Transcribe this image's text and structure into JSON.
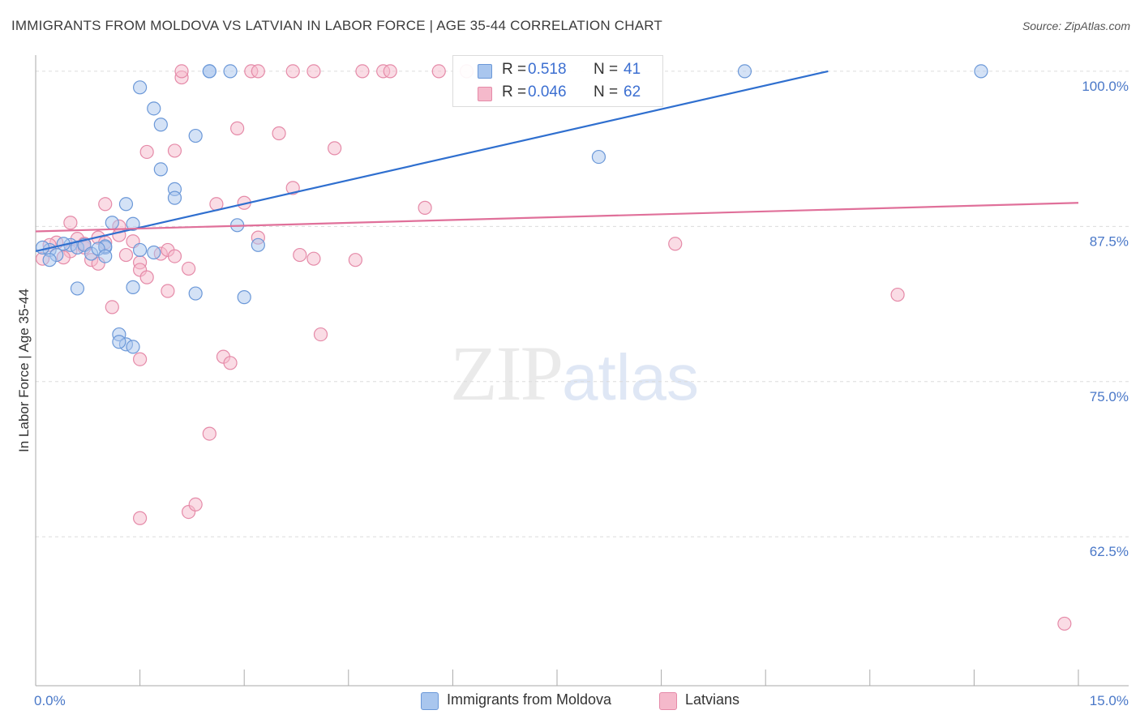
{
  "title": "IMMIGRANTS FROM MOLDOVA VS LATVIAN IN LABOR FORCE | AGE 35-44 CORRELATION CHART",
  "source": "Source: ZipAtlas.com",
  "watermark": {
    "zip": "ZIP",
    "atlas": "atlas"
  },
  "colors": {
    "blue_fill": "#a9c6ee",
    "blue_stroke": "#6b98d8",
    "blue_line": "#2f6fcf",
    "pink_fill": "#f5b9cb",
    "pink_stroke": "#e58aa8",
    "pink_line": "#e0709a",
    "tick_text": "#4a78c8",
    "grid": "#dcdcdc"
  },
  "legend": {
    "rows": [
      {
        "r_label": "R =",
        "r_value": "0.518",
        "n_label": "N =",
        "n_value": "41"
      },
      {
        "r_label": "R =",
        "r_value": "0.046",
        "n_label": "N =",
        "n_value": "62"
      }
    ]
  },
  "bottom_legend": [
    {
      "label": "Immigrants from Moldova"
    },
    {
      "label": "Latvians"
    }
  ],
  "chart_data": {
    "type": "scatter",
    "title": "IMMIGRANTS FROM MOLDOVA VS LATVIAN IN LABOR FORCE | AGE 35-44 CORRELATION CHART",
    "xlabel": "",
    "ylabel": "In Labor Force | Age 35-44",
    "xlim": [
      0,
      15
    ],
    "ylim": [
      50.5,
      101.3
    ],
    "x_tick_labels": [
      {
        "value": 0,
        "label": "0.0%"
      },
      {
        "value": 15,
        "label": "15.0%"
      }
    ],
    "y_tick_labels": [
      {
        "value": 100,
        "label": "100.0%"
      },
      {
        "value": 87.5,
        "label": "87.5%"
      },
      {
        "value": 75,
        "label": "75.0%"
      },
      {
        "value": 62.5,
        "label": "62.5%"
      }
    ],
    "gridlines_y": [
      100,
      87.5,
      75,
      62.5
    ],
    "series": [
      {
        "name": "Immigrants from Moldova",
        "color": "blue",
        "points": [
          [
            0.2,
            85.6
          ],
          [
            0.3,
            85.2
          ],
          [
            0.5,
            86.0
          ],
          [
            0.6,
            85.8
          ],
          [
            0.7,
            86.0
          ],
          [
            0.8,
            85.3
          ],
          [
            1.0,
            85.8
          ],
          [
            1.0,
            85.9
          ],
          [
            1.1,
            87.8
          ],
          [
            1.4,
            87.7
          ],
          [
            1.3,
            89.3
          ],
          [
            1.5,
            85.6
          ],
          [
            1.7,
            85.4
          ],
          [
            1.5,
            98.7
          ],
          [
            1.7,
            97.0
          ],
          [
            1.8,
            95.7
          ],
          [
            1.8,
            92.1
          ],
          [
            2.0,
            90.5
          ],
          [
            2.0,
            89.8
          ],
          [
            2.3,
            94.8
          ],
          [
            2.5,
            100.0
          ],
          [
            2.8,
            100.0
          ],
          [
            2.5,
            100.0
          ],
          [
            2.9,
            87.6
          ],
          [
            3.2,
            86.0
          ],
          [
            3.0,
            81.8
          ],
          [
            2.3,
            82.1
          ],
          [
            1.4,
            82.6
          ],
          [
            0.6,
            82.5
          ],
          [
            1.2,
            78.8
          ],
          [
            1.3,
            78.0
          ],
          [
            1.2,
            78.2
          ],
          [
            1.4,
            77.8
          ],
          [
            8.1,
            93.1
          ],
          [
            10.2,
            100.0
          ],
          [
            13.6,
            100.0
          ],
          [
            0.1,
            85.8
          ],
          [
            0.4,
            86.1
          ],
          [
            0.9,
            85.7
          ],
          [
            1.0,
            85.1
          ],
          [
            0.2,
            84.8
          ]
        ]
      },
      {
        "name": "Latvians",
        "color": "pink",
        "points": [
          [
            0.1,
            84.9
          ],
          [
            0.3,
            86.2
          ],
          [
            0.5,
            87.8
          ],
          [
            0.6,
            86.5
          ],
          [
            0.7,
            85.8
          ],
          [
            0.9,
            86.6
          ],
          [
            0.8,
            84.8
          ],
          [
            1.0,
            86.2
          ],
          [
            1.0,
            89.3
          ],
          [
            1.2,
            87.5
          ],
          [
            1.3,
            85.2
          ],
          [
            1.5,
            84.6
          ],
          [
            1.5,
            84.0
          ],
          [
            1.6,
            93.5
          ],
          [
            1.6,
            83.4
          ],
          [
            1.8,
            85.3
          ],
          [
            1.9,
            85.6
          ],
          [
            1.9,
            82.3
          ],
          [
            2.0,
            93.6
          ],
          [
            2.1,
            99.5
          ],
          [
            2.1,
            100.0
          ],
          [
            2.2,
            84.1
          ],
          [
            2.6,
            89.3
          ],
          [
            2.7,
            77.0
          ],
          [
            2.8,
            76.5
          ],
          [
            2.9,
            95.4
          ],
          [
            3.0,
            89.4
          ],
          [
            3.1,
            100.0
          ],
          [
            3.2,
            100.0
          ],
          [
            3.2,
            86.6
          ],
          [
            3.5,
            95.0
          ],
          [
            3.7,
            90.6
          ],
          [
            3.7,
            100.0
          ],
          [
            4.0,
            100.0
          ],
          [
            4.0,
            84.9
          ],
          [
            4.1,
            78.8
          ],
          [
            4.3,
            93.8
          ],
          [
            4.6,
            84.8
          ],
          [
            4.7,
            100.0
          ],
          [
            5.0,
            100.0
          ],
          [
            5.1,
            100.0
          ],
          [
            5.6,
            89.0
          ],
          [
            5.8,
            100.0
          ],
          [
            6.2,
            100.0
          ],
          [
            9.2,
            86.1
          ],
          [
            12.4,
            82.0
          ],
          [
            14.8,
            55.5
          ],
          [
            1.5,
            76.8
          ],
          [
            2.5,
            70.8
          ],
          [
            2.2,
            64.5
          ],
          [
            2.3,
            65.1
          ],
          [
            1.5,
            64.0
          ],
          [
            1.1,
            81.0
          ],
          [
            0.5,
            85.5
          ],
          [
            0.2,
            86.0
          ],
          [
            0.4,
            85.0
          ],
          [
            0.9,
            84.5
          ],
          [
            1.2,
            86.8
          ],
          [
            2.0,
            85.1
          ],
          [
            3.8,
            85.2
          ],
          [
            1.4,
            86.3
          ],
          [
            0.7,
            86.1
          ]
        ]
      }
    ],
    "trend_lines": [
      {
        "series": "Immigrants from Moldova",
        "x": [
          0.0,
          11.4
        ],
        "y": [
          85.5,
          100.0
        ]
      },
      {
        "series": "Latvians",
        "x": [
          0.0,
          15.0
        ],
        "y": [
          87.1,
          89.4
        ]
      }
    ]
  }
}
